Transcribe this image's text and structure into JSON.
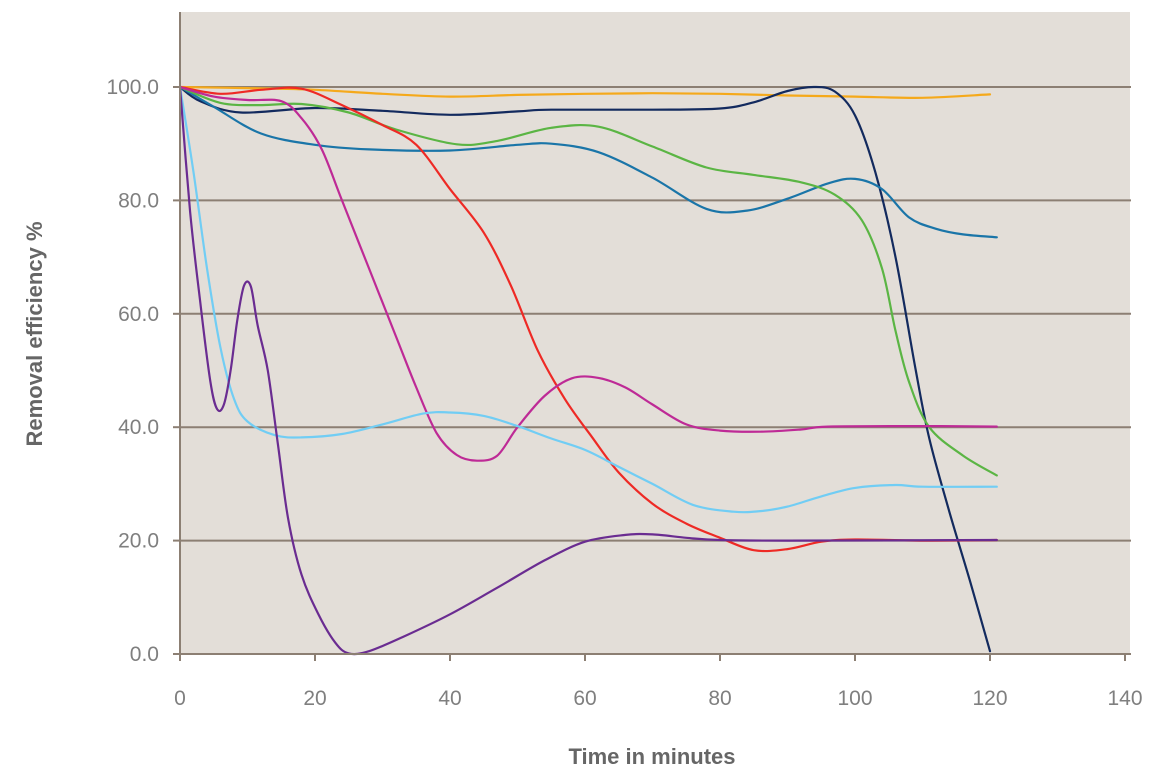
{
  "chart_data": {
    "type": "line",
    "title": "",
    "xlabel": "Time in minutes",
    "ylabel": "Removal efficiency %",
    "xlim": [
      0,
      140
    ],
    "ylim": [
      0,
      100
    ],
    "x_ticks": [
      "0",
      "20",
      "40",
      "60",
      "80",
      "100",
      "120",
      "140"
    ],
    "y_ticks": [
      "0.0",
      "20.0",
      "40.0",
      "60.0",
      "80.0",
      "100.0"
    ],
    "grid": "horizontal",
    "legend": "none",
    "plot_background": "#e3ded8",
    "gridline_color": "#8c7f73",
    "series": [
      {
        "color": "#f5a91b",
        "points": [
          [
            0,
            100
          ],
          [
            10,
            99.8
          ],
          [
            20,
            99.5
          ],
          [
            30,
            98.8
          ],
          [
            40,
            98.3
          ],
          [
            50,
            98.6
          ],
          [
            60,
            98.8
          ],
          [
            70,
            98.9
          ],
          [
            80,
            98.8
          ],
          [
            90,
            98.5
          ],
          [
            100,
            98.3
          ],
          [
            110,
            98.1
          ],
          [
            120,
            98.7
          ]
        ]
      },
      {
        "color": "#132a5e",
        "points": [
          [
            0,
            100
          ],
          [
            3,
            97.5
          ],
          [
            9,
            95.5
          ],
          [
            20,
            96.3
          ],
          [
            30,
            95.8
          ],
          [
            40,
            95.1
          ],
          [
            50,
            95.7
          ],
          [
            55,
            96
          ],
          [
            70,
            96
          ],
          [
            80,
            96.2
          ],
          [
            85,
            97.3
          ],
          [
            90,
            99.3
          ],
          [
            94,
            100
          ],
          [
            97,
            99.2
          ],
          [
            100,
            95
          ],
          [
            103,
            85
          ],
          [
            106,
            70
          ],
          [
            109,
            50
          ],
          [
            111,
            38
          ],
          [
            114,
            25
          ],
          [
            117,
            13
          ],
          [
            120,
            0.5
          ]
        ]
      },
      {
        "color": "#1a75a8",
        "points": [
          [
            0,
            100
          ],
          [
            5,
            96.5
          ],
          [
            12,
            91.8
          ],
          [
            20,
            89.8
          ],
          [
            28,
            89
          ],
          [
            40,
            88.8
          ],
          [
            50,
            89.8
          ],
          [
            55,
            90
          ],
          [
            62,
            88.5
          ],
          [
            70,
            84
          ],
          [
            78,
            78.5
          ],
          [
            84,
            78.2
          ],
          [
            90,
            80.3
          ],
          [
            96,
            83
          ],
          [
            100,
            83.8
          ],
          [
            104,
            82
          ],
          [
            108,
            77
          ],
          [
            112,
            75
          ],
          [
            116,
            74
          ],
          [
            121,
            73.5
          ]
        ]
      },
      {
        "color": "#5bb544",
        "points": [
          [
            0,
            100
          ],
          [
            6,
            97.2
          ],
          [
            12,
            96.8
          ],
          [
            18,
            97
          ],
          [
            25,
            95.5
          ],
          [
            32,
            92.5
          ],
          [
            41,
            89.9
          ],
          [
            47,
            90.5
          ],
          [
            55,
            92.8
          ],
          [
            62,
            93
          ],
          [
            70,
            89.5
          ],
          [
            78,
            85.8
          ],
          [
            85,
            84.5
          ],
          [
            92,
            83.2
          ],
          [
            97,
            81
          ],
          [
            101,
            76.5
          ],
          [
            104,
            68
          ],
          [
            106,
            57
          ],
          [
            108,
            48
          ],
          [
            111,
            40
          ],
          [
            116,
            35
          ],
          [
            121,
            31.5
          ]
        ]
      },
      {
        "color": "#ee2a25",
        "points": [
          [
            0,
            100
          ],
          [
            6,
            98.8
          ],
          [
            12,
            99.5
          ],
          [
            18,
            99.7
          ],
          [
            24,
            96.8
          ],
          [
            30,
            93.3
          ],
          [
            35,
            89.8
          ],
          [
            40,
            82
          ],
          [
            45,
            74.3
          ],
          [
            49,
            65
          ],
          [
            53,
            53.5
          ],
          [
            57,
            45
          ],
          [
            61,
            38.3
          ],
          [
            65,
            32
          ],
          [
            70,
            26.5
          ],
          [
            75,
            23
          ],
          [
            80,
            20.5
          ],
          [
            85,
            18.3
          ],
          [
            90,
            18.5
          ],
          [
            95,
            19.8
          ],
          [
            100,
            20.2
          ],
          [
            110,
            20
          ],
          [
            121,
            20.1
          ]
        ]
      },
      {
        "color": "#be2a96",
        "points": [
          [
            0,
            100
          ],
          [
            5,
            98.3
          ],
          [
            10,
            97.7
          ],
          [
            15,
            97.5
          ],
          [
            18,
            94.5
          ],
          [
            21,
            89
          ],
          [
            24,
            80
          ],
          [
            28,
            68
          ],
          [
            32,
            56
          ],
          [
            35,
            47
          ],
          [
            38,
            39
          ],
          [
            41,
            35.1
          ],
          [
            44,
            34.1
          ],
          [
            47,
            35
          ],
          [
            50,
            40
          ],
          [
            54,
            45.5
          ],
          [
            58,
            48.6
          ],
          [
            62,
            48.7
          ],
          [
            66,
            47
          ],
          [
            70,
            44
          ],
          [
            75,
            40.5
          ],
          [
            80,
            39.4
          ],
          [
            86,
            39.2
          ],
          [
            92,
            39.6
          ],
          [
            96,
            40.1
          ],
          [
            110,
            40.2
          ],
          [
            121,
            40.1
          ]
        ]
      },
      {
        "color": "#71cdf4",
        "points": [
          [
            0,
            100
          ],
          [
            2,
            85
          ],
          [
            4,
            68
          ],
          [
            6,
            54
          ],
          [
            8,
            45
          ],
          [
            10,
            41
          ],
          [
            14,
            38.6
          ],
          [
            18,
            38.2
          ],
          [
            24,
            38.8
          ],
          [
            30,
            40.5
          ],
          [
            36,
            42.4
          ],
          [
            40,
            42.6
          ],
          [
            45,
            42
          ],
          [
            50,
            40.2
          ],
          [
            55,
            38
          ],
          [
            60,
            36
          ],
          [
            65,
            33
          ],
          [
            70,
            30
          ],
          [
            76,
            26.3
          ],
          [
            82,
            25.1
          ],
          [
            86,
            25.2
          ],
          [
            90,
            26
          ],
          [
            95,
            27.8
          ],
          [
            100,
            29.3
          ],
          [
            106,
            29.8
          ],
          [
            110,
            29.5
          ],
          [
            121,
            29.5
          ]
        ]
      },
      {
        "color": "#6a2c91",
        "points": [
          [
            0,
            100
          ],
          [
            1.5,
            78
          ],
          [
            3,
            62
          ],
          [
            4.5,
            48
          ],
          [
            5.5,
            43.2
          ],
          [
            6.5,
            44
          ],
          [
            7.5,
            50
          ],
          [
            8.5,
            59
          ],
          [
            9.5,
            65
          ],
          [
            10.5,
            64.8
          ],
          [
            11.5,
            58
          ],
          [
            13,
            50
          ],
          [
            14.5,
            37
          ],
          [
            16,
            24
          ],
          [
            18,
            14
          ],
          [
            20.5,
            7
          ],
          [
            23,
            2
          ],
          [
            25,
            0.1
          ],
          [
            28,
            0.5
          ],
          [
            33,
            3
          ],
          [
            40,
            7
          ],
          [
            47,
            11.7
          ],
          [
            54,
            16.5
          ],
          [
            60,
            19.8
          ],
          [
            66,
            21
          ],
          [
            70,
            21.1
          ],
          [
            75,
            20.5
          ],
          [
            80,
            20.1
          ],
          [
            90,
            20
          ],
          [
            121,
            20.1
          ]
        ]
      }
    ]
  }
}
